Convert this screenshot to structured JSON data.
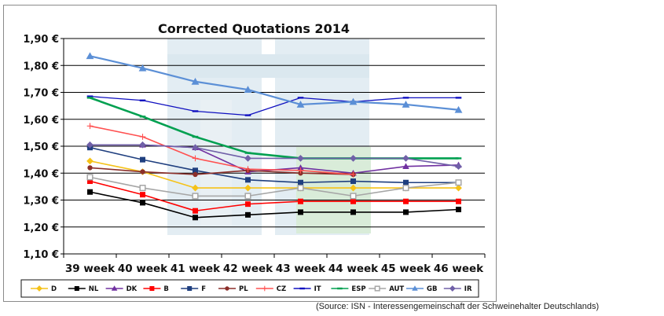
{
  "source_note": "(Source: ISN - Interessengemeinschaft der Schweinehalter Deutschlands)",
  "chart_data": {
    "type": "line",
    "title": "Corrected Quotations 2014",
    "xlabel": "",
    "ylabel": "",
    "ylim": [
      1.1,
      1.9
    ],
    "y_tick_labels": [
      "1,10 €",
      "1,20 €",
      "1,30 €",
      "1,40 €",
      "1,50 €",
      "1,60 €",
      "1,70 €",
      "1,80 €",
      "1,90 €"
    ],
    "categories": [
      "39 week",
      "40 week",
      "41 week",
      "42 week",
      "43 week",
      "44 week",
      "45 week",
      "46 week"
    ],
    "grid": true,
    "legend_position": "bottom",
    "series": [
      {
        "name": "D",
        "color": "#f5c218",
        "marker": "diamond",
        "values": [
          1.445,
          1.405,
          1.345,
          1.345,
          1.345,
          1.345,
          1.345,
          1.345
        ]
      },
      {
        "name": "NL",
        "color": "#000000",
        "marker": "square",
        "values": [
          1.33,
          1.29,
          1.235,
          1.245,
          1.255,
          1.255,
          1.255,
          1.265
        ]
      },
      {
        "name": "DK",
        "color": "#7030a0",
        "marker": "triangle",
        "values": [
          1.505,
          1.505,
          1.495,
          1.405,
          1.42,
          1.4,
          1.425,
          1.43
        ]
      },
      {
        "name": "B",
        "color": "#ff0000",
        "marker": "square",
        "values": [
          1.37,
          1.32,
          1.26,
          1.285,
          1.295,
          1.295,
          1.295,
          1.295
        ]
      },
      {
        "name": "F",
        "color": "#1f3f7f",
        "marker": "square",
        "values": [
          1.495,
          1.45,
          1.41,
          1.375,
          1.365,
          1.37,
          1.365,
          1.365
        ]
      },
      {
        "name": "PL",
        "color": "#8b2f2a",
        "marker": "circle",
        "values": [
          1.42,
          1.405,
          1.395,
          1.41,
          1.4,
          1.395,
          null,
          null
        ]
      },
      {
        "name": "CZ",
        "color": "#ff5050",
        "marker": "plus",
        "values": [
          1.575,
          1.535,
          1.455,
          1.415,
          1.41,
          1.395,
          null,
          null
        ]
      },
      {
        "name": "IT",
        "color": "#1010c0",
        "marker": "dash",
        "values": [
          1.685,
          1.67,
          1.63,
          1.615,
          1.68,
          1.665,
          1.68,
          1.68
        ]
      },
      {
        "name": "ESP",
        "color": "#00a050",
        "marker": "dash",
        "values": [
          1.68,
          1.61,
          1.535,
          1.475,
          1.455,
          1.455,
          1.455,
          1.455
        ]
      },
      {
        "name": "AUT",
        "color": "#a6a6a6",
        "marker": "square-open",
        "values": [
          1.385,
          1.345,
          1.315,
          1.315,
          1.345,
          1.315,
          1.345,
          1.365
        ]
      },
      {
        "name": "GB",
        "color": "#5b8fd6",
        "marker": "triangle",
        "values": [
          1.835,
          1.79,
          1.74,
          1.71,
          1.655,
          1.665,
          1.655,
          1.635
        ]
      },
      {
        "name": "IR",
        "color": "#7060a8",
        "marker": "diamond",
        "values": [
          1.505,
          1.505,
          1.495,
          1.455,
          1.455,
          1.455,
          1.455,
          1.425
        ]
      }
    ]
  }
}
